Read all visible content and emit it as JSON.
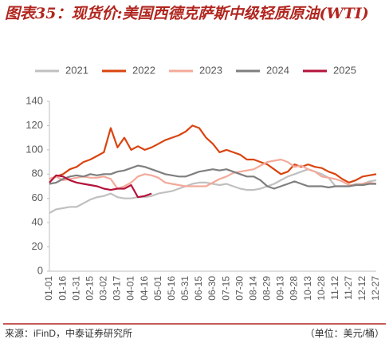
{
  "chart_data": {
    "type": "line",
    "title": "图表35：现货价:美国西德克萨斯中级轻质原油(WTI)",
    "source": "来源：iFinD，中泰证券研究所",
    "unit_note": "（单位：美元/桶）",
    "categories": [
      "01-01",
      null,
      "01-16",
      null,
      "01-31",
      null,
      "02-15",
      null,
      "03-02",
      null,
      "03-17",
      null,
      "04-01",
      null,
      "04-16",
      null,
      "05-01",
      null,
      "05-16",
      null,
      "05-31",
      null,
      "06-15",
      null,
      "06-30",
      null,
      "07-15",
      null,
      "07-30",
      null,
      "08-14",
      null,
      "08-29",
      null,
      "09-13",
      null,
      "09-28",
      null,
      "10-13",
      null,
      "10-28",
      null,
      "11-12",
      null,
      "11-27",
      null,
      "12-12",
      null,
      "12-27"
    ],
    "ylim": [
      0,
      140
    ],
    "yticks": [
      0,
      20,
      40,
      60,
      80,
      100,
      120,
      140
    ],
    "grid": false,
    "legend": "top",
    "series": [
      {
        "name": "2021",
        "color": "#c0c0c0",
        "values": [
          48,
          51,
          52,
          53,
          53,
          56,
          59,
          61,
          62,
          64,
          61,
          60,
          60,
          61,
          61,
          62,
          64,
          65,
          66,
          68,
          70,
          72,
          73,
          73,
          72,
          71,
          72,
          70,
          68,
          67,
          67,
          68,
          70,
          72,
          75,
          78,
          80,
          82,
          84,
          82,
          80,
          77,
          70,
          70,
          70,
          72,
          72,
          74,
          75
        ]
      },
      {
        "name": "2022",
        "color": "#d9440f",
        "values": [
          76,
          78,
          80,
          84,
          86,
          90,
          92,
          95,
          98,
          118,
          102,
          110,
          100,
          103,
          100,
          102,
          105,
          108,
          110,
          112,
          115,
          120,
          118,
          110,
          105,
          98,
          100,
          98,
          96,
          92,
          92,
          90,
          88,
          84,
          80,
          82,
          88,
          86,
          88,
          86,
          85,
          82,
          80,
          76,
          73,
          75,
          78,
          79,
          80
        ]
      },
      {
        "name": "2023",
        "color": "#f4a99a",
        "values": [
          76,
          78,
          75,
          76,
          77,
          78,
          77,
          77,
          78,
          76,
          68,
          70,
          73,
          78,
          80,
          79,
          77,
          73,
          72,
          71,
          70,
          70,
          70,
          70,
          73,
          76,
          78,
          81,
          82,
          83,
          84,
          87,
          90,
          91,
          92,
          90,
          86,
          87,
          84,
          82,
          78,
          77,
          76,
          74,
          71,
          71,
          72,
          73,
          72
        ]
      },
      {
        "name": "2024",
        "color": "#7f7f7f",
        "values": [
          72,
          73,
          76,
          78,
          79,
          78,
          80,
          79,
          80,
          80,
          82,
          83,
          85,
          87,
          86,
          84,
          82,
          80,
          79,
          78,
          78,
          80,
          82,
          83,
          84,
          83,
          84,
          82,
          80,
          78,
          78,
          75,
          70,
          68,
          70,
          72,
          74,
          72,
          70,
          70,
          70,
          69,
          70,
          70,
          70,
          71,
          71,
          72,
          72
        ]
      },
      {
        "name": "2025",
        "color": "#b5123b",
        "values": [
          73,
          79,
          78,
          75,
          73,
          72,
          71,
          70,
          68,
          67,
          68,
          68,
          71,
          61,
          62,
          64,
          null,
          null,
          null,
          null,
          null,
          null,
          null,
          null,
          null,
          null,
          null,
          null,
          null,
          null,
          null,
          null,
          null,
          null,
          null,
          null,
          null,
          null,
          null,
          null,
          null,
          null,
          null,
          null,
          null,
          null,
          null,
          null,
          null
        ]
      }
    ]
  }
}
